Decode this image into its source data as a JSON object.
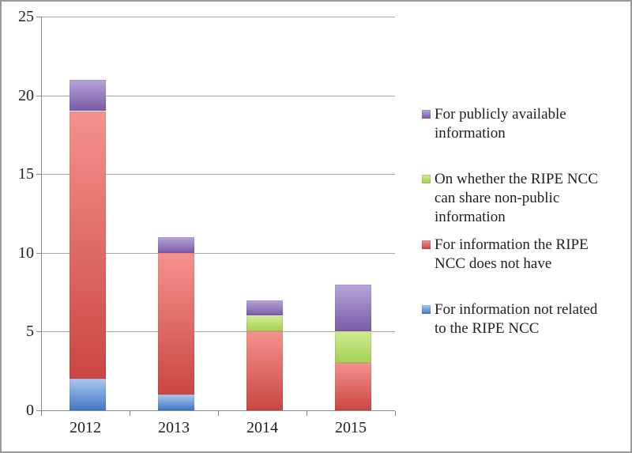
{
  "chart_data": {
    "type": "bar",
    "stacked": true,
    "title": "",
    "xlabel": "",
    "ylabel": "",
    "categories": [
      "2012",
      "2013",
      "2014",
      "2015"
    ],
    "series": [
      {
        "name": "For information not related to the RIPE NCC",
        "values": [
          2,
          1,
          0,
          0
        ],
        "color": "#5b8fd4",
        "gradient": [
          "#aac8ee",
          "#4277c3"
        ]
      },
      {
        "name": "For information the RIPE NCC does not have",
        "values": [
          17,
          9,
          5,
          3
        ],
        "color": "#d95f5c",
        "gradient": [
          "#f5928f",
          "#ca4643"
        ]
      },
      {
        "name": "On whether the RIPE NCC can share non-public information",
        "values": [
          0,
          0,
          1,
          2
        ],
        "color": "#b8dc6e",
        "gradient": [
          "#d1eb91",
          "#a3d156"
        ]
      },
      {
        "name": "For publicly available information",
        "values": [
          2,
          1,
          1,
          3
        ],
        "color": "#9a83c4",
        "gradient": [
          "#b6a5da",
          "#7b5aa6"
        ]
      }
    ],
    "totals": [
      21,
      11,
      7,
      8
    ],
    "ylim": [
      0,
      25
    ],
    "yticks": [
      0,
      5,
      10,
      15,
      20,
      25
    ],
    "grid": true,
    "legend_position": "right"
  },
  "legend": {
    "items": [
      {
        "key": "purple",
        "label": "For publicly available\ninformation",
        "gradient": [
          "#b6a5da",
          "#7b5aa6"
        ]
      },
      {
        "key": "green",
        "label": "On whether the RIPE NCC\ncan share non-public\ninformation",
        "gradient": [
          "#d1eb91",
          "#a3d156"
        ]
      },
      {
        "key": "red",
        "label": "For information the RIPE\nNCC does not have",
        "gradient": [
          "#f5928f",
          "#ca4643"
        ]
      },
      {
        "key": "blue",
        "label": "For information not related\nto the RIPE NCC",
        "gradient": [
          "#aac8ee",
          "#4277c3"
        ]
      }
    ]
  },
  "colors": {
    "gridline": "#a6a6a6",
    "axis": "#8a8a8a",
    "frame_border": "#999999",
    "text": "#1f1f1f",
    "background": "#ffffff"
  }
}
